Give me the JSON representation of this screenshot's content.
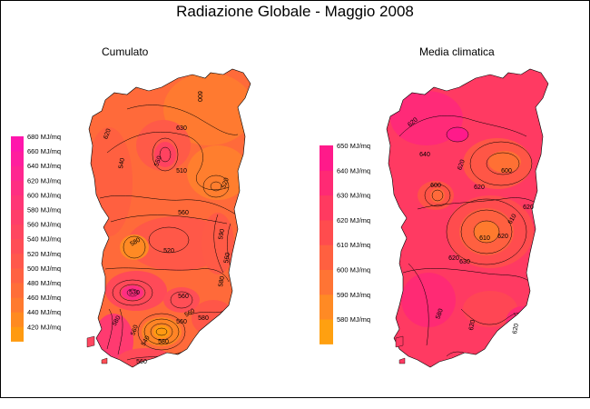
{
  "title": "Radiazione Globale - Maggio 2008",
  "left_panel": {
    "title": "Cumulato",
    "legend": {
      "colors": [
        "#ff9a10",
        "#ff8a20",
        "#ff7a2e",
        "#ff6e38",
        "#ff6242",
        "#ff584c",
        "#ff4e56",
        "#ff4660",
        "#ff3e6a",
        "#ff3676",
        "#ff2e82",
        "#ff2690",
        "#ff1e9e",
        "#ff16ac"
      ],
      "labels": [
        "680 MJ/mq",
        "660 MJ/mq",
        "640 MJ/mq",
        "620 MJ/mq",
        "600 MJ/mq",
        "580 MJ/mq",
        "560 MJ/mq",
        "540 MJ/mq",
        "520 MJ/mq",
        "500 MJ/mq",
        "480 MJ/mq",
        "460 MJ/mq",
        "440 MJ/mq",
        "420 MJ/mq"
      ]
    },
    "contour_labels": [
      "600",
      "630",
      "620",
      "540",
      "550",
      "510",
      "520",
      "560",
      "580",
      "520",
      "590",
      "560",
      "580",
      "530",
      "560",
      "580",
      "560",
      "540",
      "580",
      "560",
      "560",
      "580",
      "560"
    ]
  },
  "right_panel": {
    "title": "Media climatica",
    "legend": {
      "colors": [
        "#ffa010",
        "#ff8a24",
        "#ff7434",
        "#ff6040",
        "#ff4c4e",
        "#ff3a60",
        "#ff2a74",
        "#ff1a8a"
      ],
      "labels": [
        "650 MJ/mq",
        "640 MJ/mq",
        "630 MJ/mq",
        "620 MJ/mq",
        "610 MJ/mq",
        "600 MJ/mq",
        "590 MJ/mq",
        "580 MJ/mq"
      ]
    },
    "contour_labels": [
      "620",
      "640",
      "620",
      "600",
      "620",
      "600",
      "620",
      "610",
      "620",
      "620",
      "630",
      "610",
      "580",
      "620",
      "620"
    ]
  }
}
